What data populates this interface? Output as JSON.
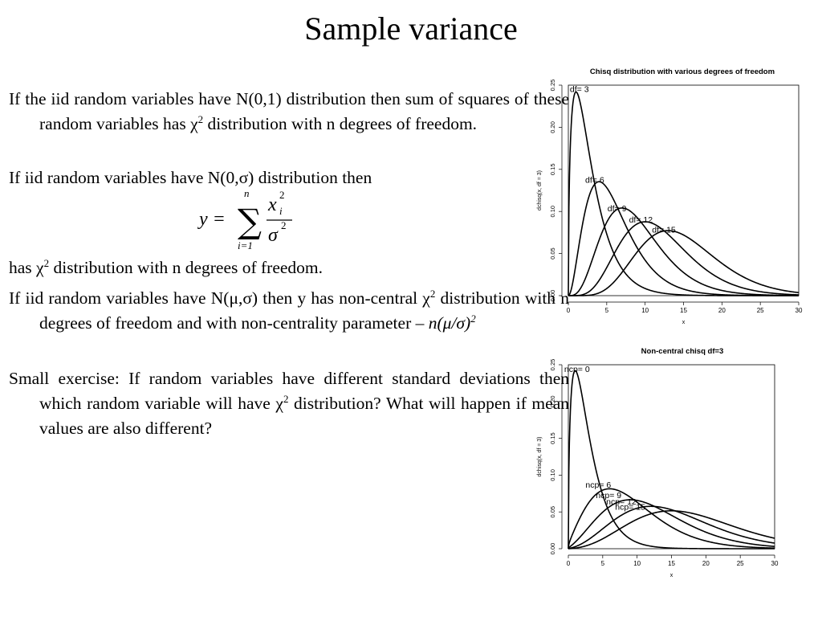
{
  "slide": {
    "title": "Sample variance"
  },
  "text": {
    "p1_a": "If the iid random variables have N(0,1) distribution then sum of squares of these random variables has ",
    "p1_chi": "χ",
    "p1_sup": "2",
    "p1_b": " distribution with n degrees of freedom.",
    "p2": "If iid random variables have N(0,σ) distribution then",
    "p3_a": "has ",
    "p3_chi": "χ",
    "p3_sup": "2",
    "p3_b": " distribution with n degrees of freedom.",
    "p4_a": "If iid random variables have N(μ,σ) then y has non-central ",
    "p4_chi": "χ",
    "p4_sup": "2",
    "p4_b": " distribution with n degrees of freedom and with non-centrality parameter – ",
    "p4_param": "n(μ/σ)",
    "p4_param_sup": "2",
    "p5_a": "Small exercise: If random variables have different standard deviations then which random variable will have ",
    "p5_chi": "χ",
    "p5_sup": "2",
    "p5_b": " distribution? What will happen if mean values are also different?"
  },
  "formula": {
    "lhs": "y =",
    "sum_upper": "n",
    "sum_symbol": "∑",
    "sum_lower": "i=1",
    "numerator_var": "x",
    "numerator_sup": "2",
    "numerator_sub": "i",
    "denominator_var": "σ",
    "denominator_sup": "2"
  },
  "chart_data": [
    {
      "type": "line",
      "title": "Chisq distribution with various degrees of freedom",
      "xlabel": "x",
      "ylabel": "dchisq(x, df = 3)",
      "xlim": [
        0,
        30
      ],
      "ylim": [
        0,
        0.25
      ],
      "xticks": [
        "0",
        "5",
        "10",
        "15",
        "20",
        "25",
        "30"
      ],
      "yticks": [
        "0.00",
        "0.05",
        "0.10",
        "0.15",
        "0.20",
        "0.25"
      ],
      "series": [
        {
          "name": "df= 3",
          "df": 3,
          "ncp": 0
        },
        {
          "name": "df= 6",
          "df": 6,
          "ncp": 0
        },
        {
          "name": "df= 9",
          "df": 9,
          "ncp": 0
        },
        {
          "name": "df= 12",
          "df": 12,
          "ncp": 0
        },
        {
          "name": "df= 15",
          "df": 15,
          "ncp": 0
        }
      ],
      "label_positions": [
        [
          0.2,
          0.242
        ],
        [
          2.2,
          0.134
        ],
        [
          5.1,
          0.1
        ],
        [
          7.9,
          0.087
        ],
        [
          10.9,
          0.075
        ]
      ]
    },
    {
      "type": "line",
      "title": "Non-central chisq df=3",
      "xlabel": "x",
      "ylabel": "dchisq(x, df = 3)",
      "xlim": [
        0,
        30
      ],
      "ylim": [
        0,
        0.25
      ],
      "xticks": [
        "0",
        "5",
        "10",
        "15",
        "20",
        "25",
        "30"
      ],
      "yticks": [
        "0.00",
        "0.05",
        "0.10",
        "0.15",
        "0.20",
        "0.25"
      ],
      "series": [
        {
          "name": "ncp= 0",
          "df": 3,
          "ncp": 0
        },
        {
          "name": "ncp= 6",
          "df": 3,
          "ncp": 6
        },
        {
          "name": "ncp= 9",
          "df": 3,
          "ncp": 9
        },
        {
          "name": "ncp= 12",
          "df": 3,
          "ncp": 12
        },
        {
          "name": "ncp= 15",
          "df": 3,
          "ncp": 15
        }
      ],
      "label_positions": [
        [
          -0.6,
          0.24
        ],
        [
          2.5,
          0.083
        ],
        [
          4,
          0.069
        ],
        [
          5.5,
          0.06
        ],
        [
          6.8,
          0.053
        ]
      ]
    }
  ]
}
